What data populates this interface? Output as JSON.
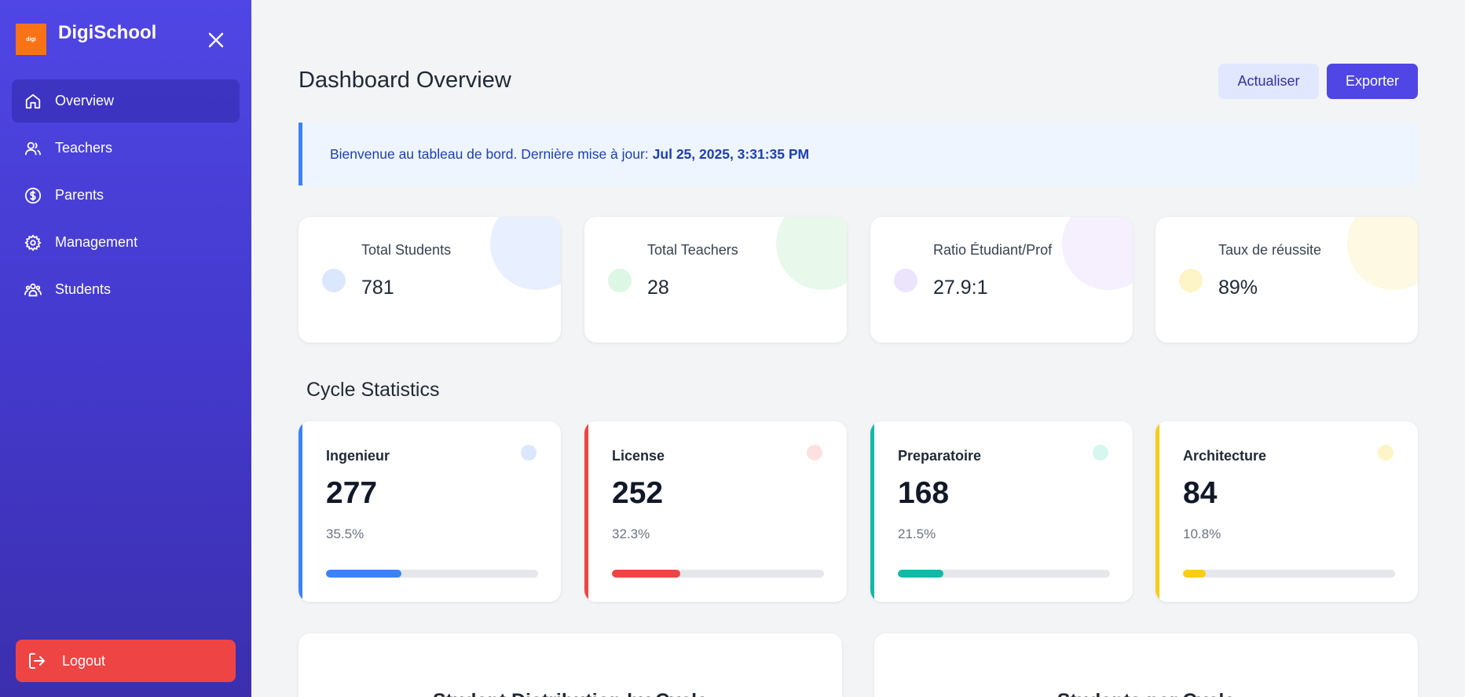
{
  "sidebar": {
    "brand_name": "DigiSchool",
    "logo_text": "digi",
    "items": [
      {
        "label": "Overview",
        "icon": "home-icon",
        "active": true
      },
      {
        "label": "Teachers",
        "icon": "users-icon",
        "active": false
      },
      {
        "label": "Parents",
        "icon": "dollar-icon",
        "active": false
      },
      {
        "label": "Management",
        "icon": "gear-icon",
        "active": false
      },
      {
        "label": "Students",
        "icon": "group-icon",
        "active": false
      }
    ],
    "logout_label": "Logout"
  },
  "header": {
    "title": "Dashboard Overview",
    "refresh_label": "Actualiser",
    "export_label": "Exporter"
  },
  "banner": {
    "text": "Bienvenue au tableau de bord. Dernière mise à jour:",
    "timestamp": "Jul 25, 2025, 3:31:35 PM"
  },
  "stats": [
    {
      "label": "Total Students",
      "value": "781",
      "color": "#3b82f6",
      "soft": "#e8efff",
      "dot": "#dbe7fd"
    },
    {
      "label": "Total Teachers",
      "value": "28",
      "color": "#22c55e",
      "soft": "#e8f9ec",
      "dot": "#dcf7e4"
    },
    {
      "label": "Ratio Étudiant/Prof",
      "value": "27.9:1",
      "color": "#a855f7",
      "soft": "#f5effe",
      "dot": "#ece3fc"
    },
    {
      "label": "Taux de réussite",
      "value": "89%",
      "color": "#eab308",
      "soft": "#fdf9e2",
      "dot": "#fdf5c7"
    }
  ],
  "cycle_section_title": "Cycle Statistics",
  "cycles": [
    {
      "name": "Ingenieur",
      "count": "277",
      "percent_label": "35.5%",
      "fill_fraction": 0.355,
      "color": "#3b82f6",
      "dot": "#dbe7fd"
    },
    {
      "name": "License",
      "count": "252",
      "percent_label": "32.3%",
      "fill_fraction": 0.323,
      "color": "#ef4444",
      "dot": "#fde1e1"
    },
    {
      "name": "Preparatoire",
      "count": "168",
      "percent_label": "21.5%",
      "fill_fraction": 0.215,
      "color": "#14b8a6",
      "dot": "#d5f7ef"
    },
    {
      "name": "Architecture",
      "count": "84",
      "percent_label": "10.8%",
      "fill_fraction": 0.108,
      "color": "#facc15",
      "dot": "#fdf5c7"
    }
  ],
  "charts": [
    {
      "title": "Student Distribution by Cycle"
    },
    {
      "title": "Students per Cycle"
    }
  ]
}
